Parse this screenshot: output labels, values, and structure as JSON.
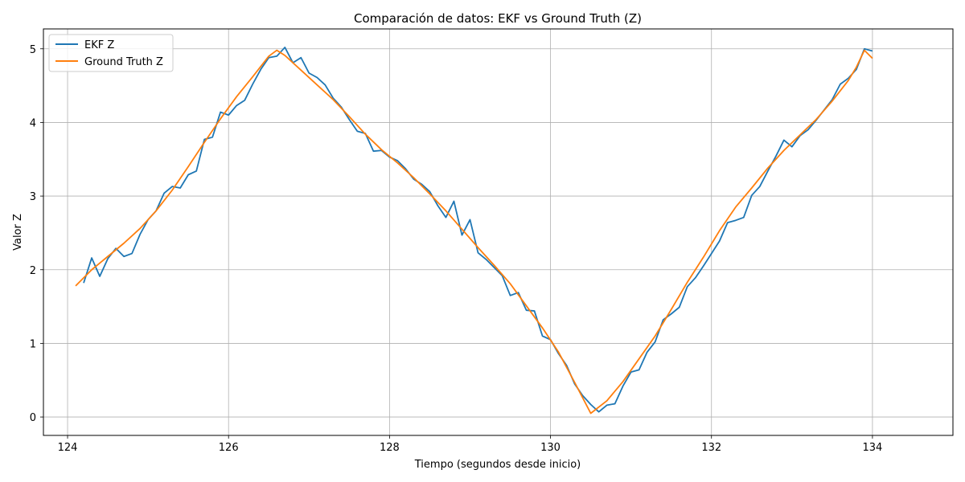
{
  "chart_data": {
    "type": "line",
    "title": "Comparación de datos: EKF vs Ground Truth (Z)",
    "xlabel": "Tiempo (segundos desde inicio)",
    "ylabel": "Valor Z",
    "xlim": [
      123.7,
      135.0
    ],
    "ylim": [
      -0.25,
      5.27
    ],
    "xticks": [
      124,
      126,
      128,
      130,
      132,
      134
    ],
    "yticks": [
      0,
      1,
      2,
      3,
      4,
      5
    ],
    "grid": true,
    "legend_position": "top-left",
    "series": [
      {
        "name": "EKF Z",
        "color": "#1f77b4",
        "x": [
          124.2,
          124.3,
          124.4,
          124.5,
          124.6,
          124.7,
          124.8,
          124.9,
          125.0,
          125.1,
          125.2,
          125.3,
          125.4,
          125.5,
          125.6,
          125.7,
          125.8,
          125.9,
          126.0,
          126.1,
          126.2,
          126.3,
          126.4,
          126.5,
          126.6,
          126.7,
          126.8,
          126.9,
          127.0,
          127.1,
          127.2,
          127.3,
          127.4,
          127.5,
          127.6,
          127.7,
          127.8,
          127.9,
          128.0,
          128.1,
          128.2,
          128.3,
          128.4,
          128.5,
          128.6,
          128.7,
          128.8,
          128.9,
          129.0,
          129.1,
          129.2,
          129.3,
          129.4,
          129.5,
          129.6,
          129.7,
          129.8,
          129.9,
          130.0,
          130.1,
          130.2,
          130.3,
          130.4,
          130.5,
          130.6,
          130.7,
          130.8,
          130.9,
          131.0,
          131.1,
          131.2,
          131.3,
          131.4,
          131.5,
          131.6,
          131.7,
          131.8,
          131.9,
          132.0,
          132.1,
          132.2,
          132.3,
          132.4,
          132.5,
          132.6,
          132.7,
          132.8,
          132.9,
          133.0,
          133.1,
          133.2,
          133.3,
          133.4,
          133.5,
          133.6,
          133.7,
          133.8,
          133.9,
          134.0
        ],
        "y": [
          1.82,
          2.16,
          1.91,
          2.15,
          2.29,
          2.18,
          2.22,
          2.48,
          2.68,
          2.8,
          3.04,
          3.13,
          3.11,
          3.29,
          3.34,
          3.77,
          3.8,
          4.14,
          4.1,
          4.23,
          4.3,
          4.52,
          4.72,
          4.88,
          4.9,
          5.02,
          4.81,
          4.88,
          4.67,
          4.61,
          4.51,
          4.33,
          4.21,
          4.04,
          3.88,
          3.85,
          3.61,
          3.62,
          3.53,
          3.48,
          3.37,
          3.23,
          3.16,
          3.06,
          2.87,
          2.71,
          2.93,
          2.47,
          2.68,
          2.23,
          2.14,
          2.03,
          1.92,
          1.65,
          1.69,
          1.45,
          1.44,
          1.1,
          1.05,
          0.86,
          0.7,
          0.45,
          0.29,
          0.17,
          0.07,
          0.16,
          0.18,
          0.42,
          0.61,
          0.64,
          0.88,
          1.02,
          1.32,
          1.4,
          1.49,
          1.77,
          1.89,
          2.05,
          2.22,
          2.39,
          2.64,
          2.67,
          2.71,
          3.01,
          3.13,
          3.34,
          3.54,
          3.76,
          3.67,
          3.82,
          3.9,
          4.03,
          4.17,
          4.31,
          4.52,
          4.6,
          4.72,
          5.0,
          4.97
        ]
      },
      {
        "name": "Ground Truth Z",
        "color": "#ff7f0e",
        "x": [
          124.1,
          124.3,
          124.5,
          124.7,
          124.9,
          125.1,
          125.3,
          125.5,
          125.7,
          125.9,
          126.1,
          126.3,
          126.5,
          126.6,
          126.7,
          126.9,
          127.1,
          127.3,
          127.5,
          127.7,
          127.9,
          128.1,
          128.3,
          128.5,
          128.7,
          128.9,
          129.1,
          129.3,
          129.5,
          129.7,
          129.9,
          130.1,
          130.3,
          130.5,
          130.7,
          130.9,
          131.1,
          131.3,
          131.5,
          131.7,
          131.9,
          132.1,
          132.3,
          132.5,
          132.7,
          132.9,
          133.1,
          133.3,
          133.5,
          133.7,
          133.8,
          133.9,
          134.0
        ],
        "y": [
          1.78,
          2.0,
          2.18,
          2.36,
          2.56,
          2.8,
          3.08,
          3.4,
          3.73,
          4.05,
          4.35,
          4.62,
          4.9,
          4.98,
          4.91,
          4.71,
          4.51,
          4.31,
          4.08,
          3.84,
          3.63,
          3.45,
          3.25,
          3.03,
          2.8,
          2.55,
          2.3,
          2.06,
          1.81,
          1.51,
          1.21,
          0.88,
          0.47,
          0.05,
          0.22,
          0.48,
          0.79,
          1.1,
          1.46,
          1.83,
          2.17,
          2.53,
          2.85,
          3.11,
          3.38,
          3.62,
          3.83,
          4.04,
          4.29,
          4.57,
          4.75,
          4.98,
          4.87
        ]
      }
    ]
  }
}
